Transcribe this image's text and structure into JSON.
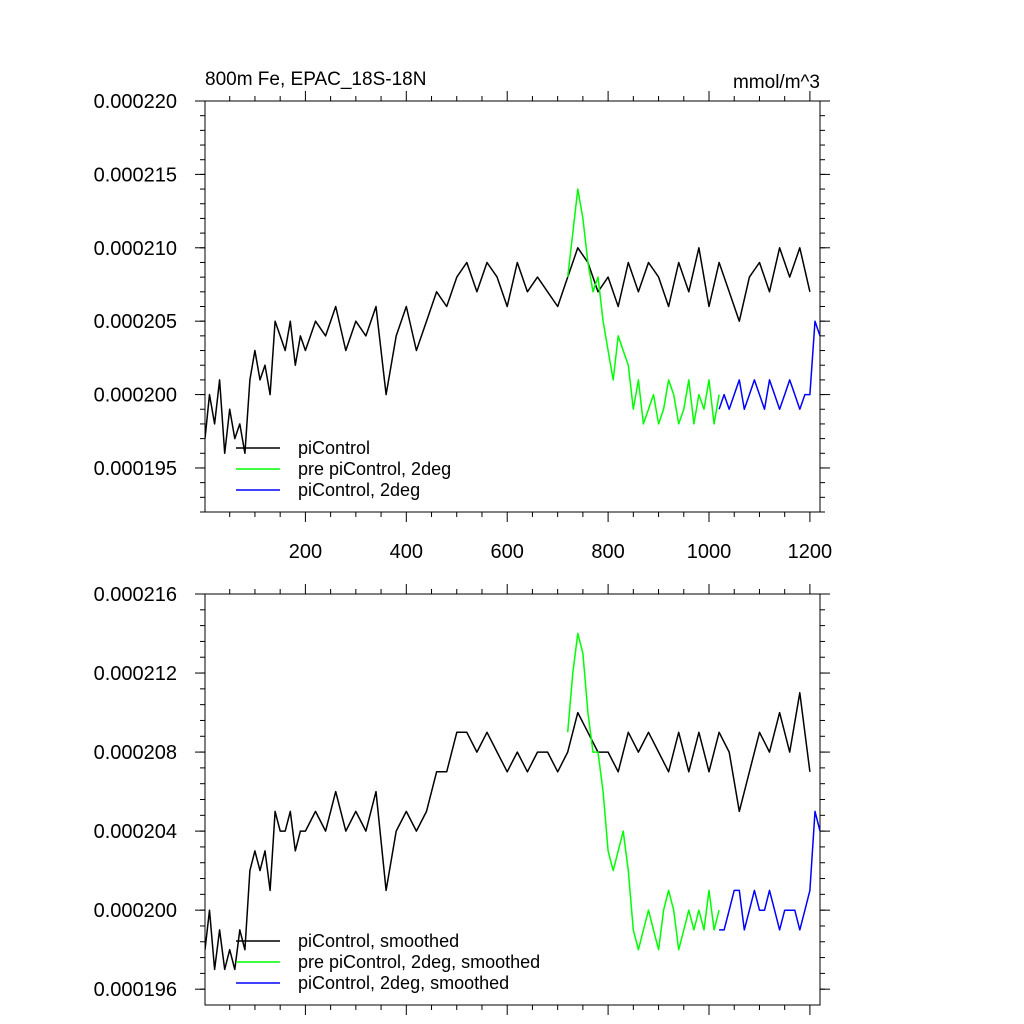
{
  "chart_data": [
    {
      "type": "line",
      "title_left": "800m Fe, EPAC_18S-18N",
      "title_right": "mmol/m^3",
      "xlabel": "",
      "ylabel": "",
      "xlim": [
        1,
        1220
      ],
      "ylim": [
        0.000192,
        0.00022
      ],
      "y_ticks": [
        "0.000220",
        "0.000215",
        "0.000210",
        "0.000205",
        "0.000200",
        "0.000195"
      ],
      "x_ticks": [
        "200",
        "400",
        "600",
        "800",
        "1000",
        "1200"
      ],
      "legend_position": "bottom-left",
      "series": [
        {
          "name": "piControl",
          "color": "#000000",
          "x": [
            1,
            10,
            20,
            30,
            40,
            50,
            60,
            70,
            80,
            90,
            100,
            110,
            120,
            130,
            140,
            150,
            160,
            170,
            180,
            190,
            200,
            220,
            240,
            260,
            280,
            300,
            320,
            340,
            360,
            380,
            400,
            420,
            440,
            460,
            480,
            500,
            520,
            540,
            560,
            580,
            600,
            620,
            640,
            660,
            680,
            700,
            720,
            740,
            760,
            780,
            800,
            820,
            840,
            860,
            880,
            900,
            920,
            940,
            960,
            980,
            1000,
            1020,
            1040,
            1060,
            1080,
            1100,
            1120,
            1140,
            1160,
            1180,
            1200
          ],
          "values": [
            0.000197,
            0.0002,
            0.000198,
            0.000201,
            0.000196,
            0.000199,
            0.000197,
            0.000198,
            0.000196,
            0.000201,
            0.000203,
            0.000201,
            0.000202,
            0.0002,
            0.000205,
            0.000204,
            0.000203,
            0.000205,
            0.000202,
            0.000204,
            0.000203,
            0.000205,
            0.000204,
            0.000206,
            0.000203,
            0.000205,
            0.000204,
            0.000206,
            0.0002,
            0.000204,
            0.000206,
            0.000203,
            0.000205,
            0.000207,
            0.000206,
            0.000208,
            0.000209,
            0.000207,
            0.000209,
            0.000208,
            0.000206,
            0.000209,
            0.000207,
            0.000208,
            0.000207,
            0.000206,
            0.000208,
            0.00021,
            0.000209,
            0.000207,
            0.000208,
            0.000206,
            0.000209,
            0.000207,
            0.000209,
            0.000208,
            0.000206,
            0.000209,
            0.000207,
            0.00021,
            0.000206,
            0.000209,
            0.000207,
            0.000205,
            0.000208,
            0.000209,
            0.000207,
            0.00021,
            0.000208,
            0.00021,
            0.000207
          ]
        },
        {
          "name": "pre piControl, 2deg",
          "color": "#00ff00",
          "x": [
            720,
            730,
            740,
            750,
            760,
            770,
            780,
            790,
            800,
            810,
            820,
            830,
            840,
            850,
            860,
            870,
            880,
            890,
            900,
            910,
            920,
            930,
            940,
            950,
            960,
            970,
            980,
            990,
            1000,
            1010,
            1020
          ],
          "values": [
            0.000208,
            0.000211,
            0.000214,
            0.000212,
            0.000209,
            0.000207,
            0.000208,
            0.000205,
            0.000203,
            0.000201,
            0.000204,
            0.000203,
            0.000202,
            0.000199,
            0.000201,
            0.000198,
            0.000199,
            0.0002,
            0.000198,
            0.000199,
            0.000201,
            0.0002,
            0.000198,
            0.000199,
            0.000201,
            0.000198,
            0.0002,
            0.000199,
            0.000201,
            0.000198,
            0.0002
          ]
        },
        {
          "name": "piControl, 2deg",
          "color": "#0000ff",
          "x": [
            1020,
            1030,
            1040,
            1050,
            1060,
            1070,
            1080,
            1090,
            1100,
            1110,
            1120,
            1130,
            1140,
            1150,
            1160,
            1170,
            1180,
            1190,
            1200,
            1210,
            1220
          ],
          "values": [
            0.000199,
            0.0002,
            0.000199,
            0.0002,
            0.000201,
            0.000199,
            0.0002,
            0.000201,
            0.0002,
            0.000199,
            0.000201,
            0.0002,
            0.000199,
            0.0002,
            0.000201,
            0.0002,
            0.000199,
            0.0002,
            0.0002,
            0.000205,
            0.000204
          ]
        }
      ]
    },
    {
      "type": "line",
      "xlabel": "",
      "ylabel": "",
      "xlim": [
        1,
        1220
      ],
      "ylim": [
        0.0001952,
        0.000216
      ],
      "y_ticks": [
        "0.000216",
        "0.000212",
        "0.000208",
        "0.000204",
        "0.000200",
        "0.000196"
      ],
      "legend_position": "bottom-left",
      "series": [
        {
          "name": "piControl, smoothed",
          "color": "#000000",
          "x": [
            1,
            10,
            20,
            30,
            40,
            50,
            60,
            70,
            80,
            90,
            100,
            110,
            120,
            130,
            140,
            150,
            160,
            170,
            180,
            190,
            200,
            220,
            240,
            260,
            280,
            300,
            320,
            340,
            360,
            380,
            400,
            420,
            440,
            460,
            480,
            500,
            520,
            540,
            560,
            580,
            600,
            620,
            640,
            660,
            680,
            700,
            720,
            740,
            760,
            780,
            800,
            820,
            840,
            860,
            880,
            900,
            920,
            940,
            960,
            980,
            1000,
            1020,
            1040,
            1060,
            1080,
            1100,
            1120,
            1140,
            1160,
            1180,
            1200
          ],
          "values": [
            0.000198,
            0.0002,
            0.000197,
            0.000199,
            0.000197,
            0.000198,
            0.000197,
            0.000199,
            0.000198,
            0.000202,
            0.000203,
            0.000202,
            0.000203,
            0.000201,
            0.000205,
            0.000204,
            0.000204,
            0.000205,
            0.000203,
            0.000204,
            0.000204,
            0.000205,
            0.000204,
            0.000206,
            0.000204,
            0.000205,
            0.000204,
            0.000206,
            0.000201,
            0.000204,
            0.000205,
            0.000204,
            0.000205,
            0.000207,
            0.000207,
            0.000209,
            0.000209,
            0.000208,
            0.000209,
            0.000208,
            0.000207,
            0.000208,
            0.000207,
            0.000208,
            0.000208,
            0.000207,
            0.000208,
            0.00021,
            0.000209,
            0.000208,
            0.000208,
            0.000207,
            0.000209,
            0.000208,
            0.000209,
            0.000208,
            0.000207,
            0.000209,
            0.000207,
            0.000209,
            0.000207,
            0.000209,
            0.000208,
            0.000205,
            0.000207,
            0.000209,
            0.000208,
            0.00021,
            0.000208,
            0.000211,
            0.000207
          ]
        },
        {
          "name": "pre piControl, 2deg, smoothed",
          "color": "#00ff00",
          "x": [
            720,
            730,
            740,
            750,
            760,
            770,
            780,
            790,
            800,
            810,
            820,
            830,
            840,
            850,
            860,
            870,
            880,
            890,
            900,
            910,
            920,
            930,
            940,
            950,
            960,
            970,
            980,
            990,
            1000,
            1010,
            1020
          ],
          "values": [
            0.000209,
            0.000212,
            0.000214,
            0.000213,
            0.00021,
            0.000208,
            0.000208,
            0.000206,
            0.000203,
            0.000202,
            0.000203,
            0.000204,
            0.000202,
            0.000199,
            0.000198,
            0.000199,
            0.0002,
            0.000199,
            0.000198,
            0.0002,
            0.000201,
            0.0002,
            0.000198,
            0.000199,
            0.0002,
            0.000199,
            0.0002,
            0.000199,
            0.000201,
            0.000199,
            0.0002
          ]
        },
        {
          "name": "piControl, 2deg, smoothed",
          "color": "#0000ff",
          "x": [
            1020,
            1030,
            1040,
            1050,
            1060,
            1070,
            1080,
            1090,
            1100,
            1110,
            1120,
            1130,
            1140,
            1150,
            1160,
            1170,
            1180,
            1190,
            1200,
            1210,
            1220
          ],
          "values": [
            0.000199,
            0.000199,
            0.0002,
            0.000201,
            0.000201,
            0.000199,
            0.0002,
            0.000201,
            0.0002,
            0.0002,
            0.000201,
            0.0002,
            0.000199,
            0.0002,
            0.0002,
            0.0002,
            0.000199,
            0.0002,
            0.000201,
            0.000205,
            0.000204
          ]
        }
      ]
    }
  ]
}
